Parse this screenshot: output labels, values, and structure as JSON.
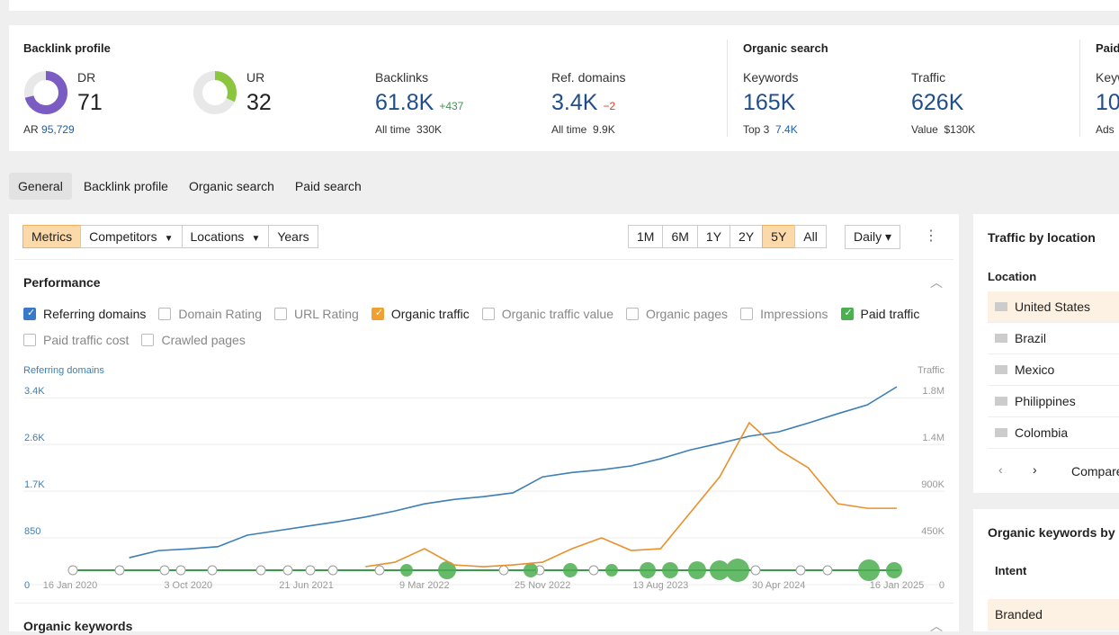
{
  "header": {
    "backlink_profile": {
      "title": "Backlink profile",
      "dr": {
        "label": "DR",
        "value": 71,
        "sub_label": "AR",
        "sub_value": "95,729"
      },
      "ur": {
        "label": "UR",
        "value": 32
      },
      "backlinks": {
        "label": "Backlinks",
        "value": "61.8K",
        "change": "+437",
        "sub_label": "All time",
        "sub_value": "330K"
      },
      "ref_domains": {
        "label": "Ref. domains",
        "value": "3.4K",
        "change": "−2",
        "sub_label": "All time",
        "sub_value": "9.9K"
      }
    },
    "organic_search": {
      "title": "Organic search",
      "keywords": {
        "label": "Keywords",
        "value": "165K",
        "sub_label": "Top 3",
        "sub_value": "7.4K"
      },
      "traffic": {
        "label": "Traffic",
        "value": "626K",
        "sub_label": "Value",
        "sub_value": "$130K"
      }
    },
    "paid_search": {
      "title": "Paid",
      "label": "Keyw",
      "value": "10",
      "sub_label": "Ads"
    }
  },
  "tabs": [
    "General",
    "Backlink profile",
    "Organic search",
    "Paid search"
  ],
  "selected_tab": 0,
  "toolbar": {
    "views": [
      "Metrics",
      "Competitors",
      "Locations",
      "Years"
    ],
    "dropdown_views": [
      1,
      2
    ],
    "selected_view": 0,
    "ranges": [
      "1M",
      "6M",
      "1Y",
      "2Y",
      "5Y",
      "All"
    ],
    "selected_range": 4,
    "interval": "Daily"
  },
  "performance": {
    "title": "Performance",
    "options": [
      {
        "label": "Referring domains",
        "checked": true,
        "color": "#3a78c9"
      },
      {
        "label": "Domain Rating",
        "checked": false
      },
      {
        "label": "URL Rating",
        "checked": false
      },
      {
        "label": "Organic traffic",
        "checked": true,
        "color": "#f0a030"
      },
      {
        "label": "Organic traffic value",
        "checked": false
      },
      {
        "label": "Organic pages",
        "checked": false
      },
      {
        "label": "Impressions",
        "checked": false
      },
      {
        "label": "Paid traffic",
        "checked": true,
        "color": "#4caf50"
      },
      {
        "label": "Paid traffic cost",
        "checked": false
      },
      {
        "label": "Crawled pages",
        "checked": false
      }
    ]
  },
  "chart_data": {
    "type": "line",
    "y_label": "Referring domains",
    "y2_label": "Traffic",
    "categories": [
      "16 Jan 2020",
      null,
      null,
      null,
      "3 Oct 2020",
      null,
      null,
      null,
      "21 Jun 2021",
      null,
      null,
      null,
      "9 Mar 2022",
      null,
      null,
      null,
      "25 Nov 2022",
      null,
      null,
      null,
      "13 Aug 2023",
      null,
      null,
      null,
      "30 Apr 2024",
      null,
      null,
      null,
      "16 Jan 2025"
    ],
    "ylim": [
      0,
      3600
    ],
    "yticks": [
      0,
      850,
      {
        "value": 1700,
        "label": "1.7K"
      },
      {
        "value": 2550,
        "label": "2.6K"
      },
      {
        "value": 3400,
        "label": "3.4K"
      }
    ],
    "y2lim": [
      0,
      1905000
    ],
    "y2ticks": [
      0,
      {
        "value": 450000,
        "label": "450K"
      },
      {
        "value": 900000,
        "label": "900K"
      },
      {
        "value": 1350000,
        "label": "1.4M"
      },
      {
        "value": 1800000,
        "label": "1.8M"
      }
    ],
    "grid": true,
    "series": [
      {
        "color": "#3d7eb5",
        "values": [
          null,
          null,
          490,
          620,
          650,
          690,
          900,
          980,
          1060,
          1140,
          1230,
          1340,
          1470,
          1550,
          1600,
          1670,
          1960,
          2040,
          2090,
          2160,
          2290,
          2450,
          2570,
          2700,
          2780,
          2940,
          3110,
          3270,
          3600
        ]
      },
      {
        "color": "#e8912d",
        "axis": "y2",
        "values": [
          null,
          null,
          null,
          null,
          null,
          null,
          null,
          null,
          null,
          null,
          173000,
          216000,
          346000,
          190000,
          173000,
          190000,
          216000,
          346000,
          450000,
          329000,
          346000,
          692000,
          1038000,
          1558000,
          1298000,
          1125000,
          779000,
          735000,
          735000
        ]
      }
    ]
  },
  "traffic_by_location": {
    "title": "Traffic by location",
    "column": "Location",
    "rows": [
      "United States",
      "Brazil",
      "Mexico",
      "Philippines",
      "Colombia"
    ],
    "compare": "Compare"
  },
  "organic_keywords_by_intent": {
    "title": "Organic keywords by i",
    "column": "Intent",
    "rows": [
      "Branded"
    ]
  },
  "organic_keywords": {
    "title": "Organic keywords"
  }
}
